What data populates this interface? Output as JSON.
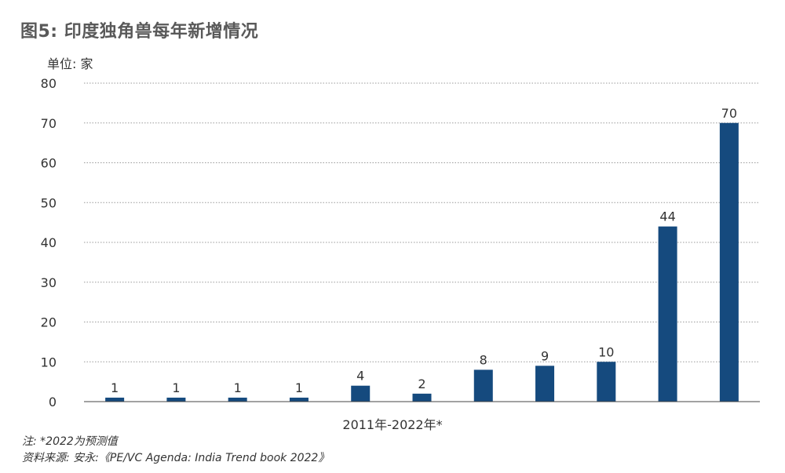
{
  "title": "图5: 印度独角兽每年新增情况",
  "unit_label": "单位: 家",
  "footnotes": {
    "note": "注: *2022为预测值",
    "source": "资料来源: 安永:《PE/VC Agenda: India Trend book 2022》"
  },
  "colors": {
    "bar": "#154a7e",
    "grid": "#9a9a9a",
    "axis": "#444444"
  },
  "chart_data": {
    "type": "bar",
    "title": "图5: 印度独角兽每年新增情况",
    "xlabel": "2011年-2022年*",
    "ylabel": "单位: 家",
    "ylim": [
      0,
      80
    ],
    "yticks": [
      0,
      10,
      20,
      30,
      40,
      50,
      60,
      70,
      80
    ],
    "grid": true,
    "values": [
      1,
      1,
      1,
      1,
      4,
      2,
      8,
      9,
      10,
      44,
      70
    ],
    "data_labels": [
      "1",
      "1",
      "1",
      "1",
      "4",
      "2",
      "8",
      "9",
      "10",
      "44",
      "70"
    ]
  }
}
